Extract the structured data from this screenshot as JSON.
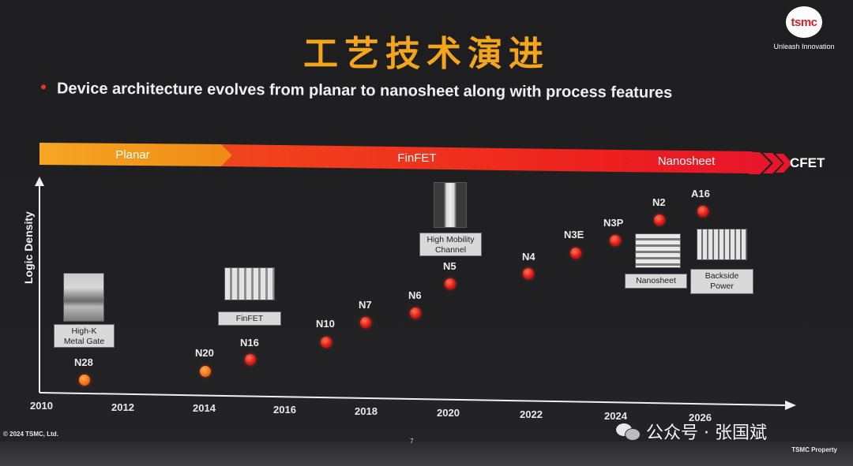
{
  "slide": {
    "title": "工艺技术演进",
    "bullet": "Device architecture evolves from planar to nanosheet along with process features",
    "logo_text": "tsmc",
    "logo_tagline": "Unleash Innovation",
    "copyright": "© 2024 TSMC, Ltd.",
    "page_number": "7",
    "property": "TSMC Property"
  },
  "watermark": {
    "text": "公众号 · 张国斌"
  },
  "architecture": {
    "planar": "Planar",
    "finfet": "FinFET",
    "nanosheet": "Nanosheet",
    "cfet": "CFET"
  },
  "chart_data": {
    "type": "scatter",
    "title": "",
    "xlabel": "",
    "ylabel": "Logic Density",
    "x_ticks": [
      "2010",
      "2012",
      "2014",
      "2016",
      "2018",
      "2020",
      "2022",
      "2024",
      "2026"
    ],
    "points": [
      {
        "label": "N28",
        "x": 2011
      },
      {
        "label": "N20",
        "x": 2014
      },
      {
        "label": "N16",
        "x": 2015
      },
      {
        "label": "N10",
        "x": 2017
      },
      {
        "label": "N7",
        "x": 2018
      },
      {
        "label": "N6",
        "x": 2019
      },
      {
        "label": "N5",
        "x": 2020
      },
      {
        "label": "N4",
        "x": 2022
      },
      {
        "label": "N3E",
        "x": 2023
      },
      {
        "label": "N3P",
        "x": 2024
      },
      {
        "label": "N2",
        "x": 2025
      },
      {
        "label": "A16",
        "x": 2026
      }
    ],
    "features": [
      "High-K\nMetal Gate",
      "FinFET",
      "High Mobility\nChannel",
      "Nanosheet",
      "Backside\nPower"
    ]
  },
  "colors": {
    "title": "#f3a51b",
    "planar": "#f39a1e",
    "finfet": "#ee2a1e",
    "dot": "#e01818"
  }
}
